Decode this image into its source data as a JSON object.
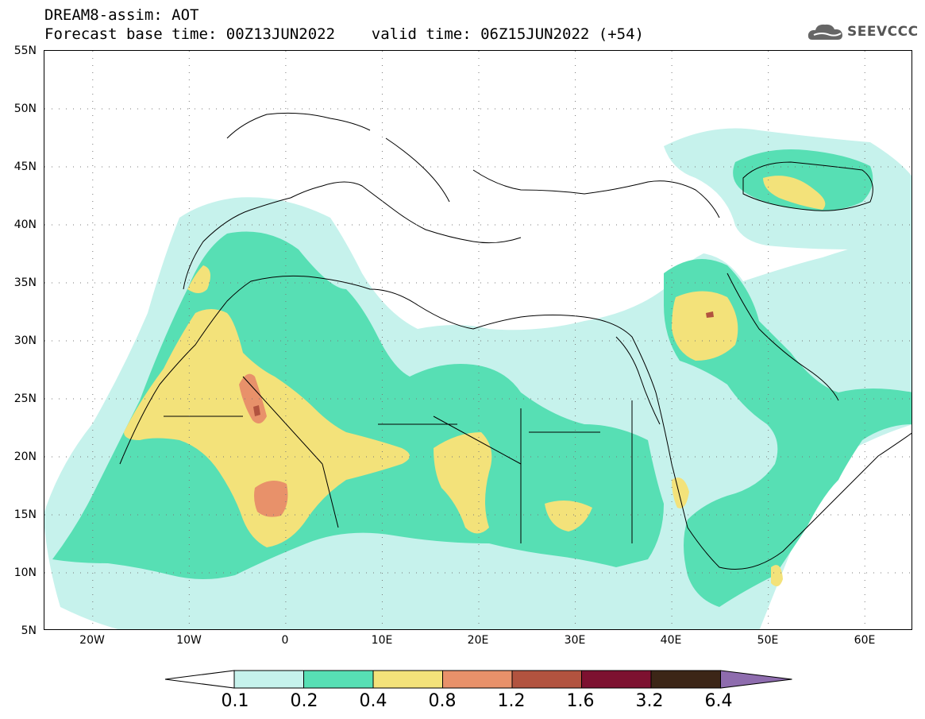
{
  "title": {
    "line1": "DREAM8-assim: AOT",
    "line2": "Forecast base time: 00Z13JUN2022    valid time: 06Z15JUN2022 (+54)"
  },
  "logo": {
    "text": "SEEVCCC",
    "icon": "cloud-icon"
  },
  "map": {
    "projection": "lat-lon",
    "lon_range": [
      -25,
      65
    ],
    "lat_range": [
      5,
      55
    ],
    "lat_ticks": [
      "55N",
      "50N",
      "45N",
      "40N",
      "35N",
      "30N",
      "25N",
      "20N",
      "15N",
      "10N",
      "5N"
    ],
    "lon_ticks": [
      "20W",
      "10W",
      "0",
      "10E",
      "20E",
      "30E",
      "40E",
      "50E",
      "60E"
    ],
    "grid": "dotted"
  },
  "colorbar": {
    "labels": [
      "0.1",
      "0.2",
      "0.4",
      "0.8",
      "1.2",
      "1.6",
      "3.2",
      "6.4"
    ],
    "colors": [
      "#ffffff",
      "#c6f2ec",
      "#57dfb4",
      "#f3e27a",
      "#e8916a",
      "#b2533f",
      "#7d1130",
      "#3c2617",
      "#8e6cae"
    ]
  }
}
